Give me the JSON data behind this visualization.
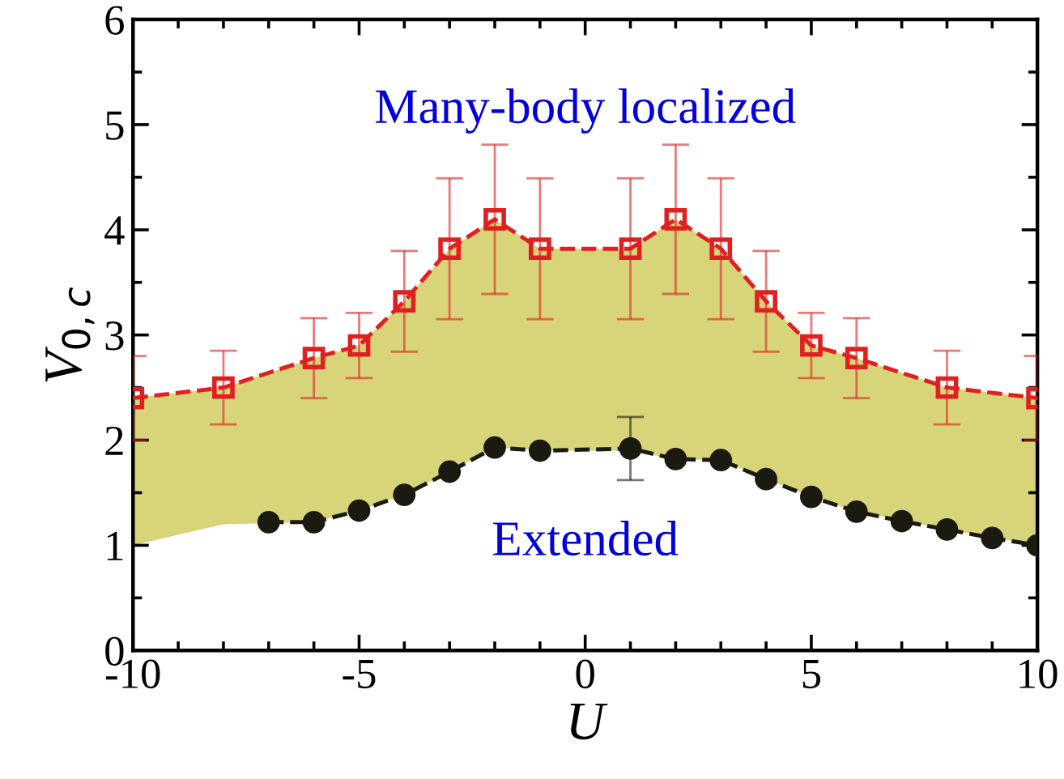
{
  "chart_data": {
    "type": "line",
    "xlabel": "U",
    "ylabel": "V$_{0,c}$",
    "annotations": [
      "Many-body localized",
      "Extended"
    ],
    "xlim": [
      -10,
      10
    ],
    "xticks": [
      -10,
      -5,
      0,
      5,
      10
    ],
    "ylim": [
      0,
      6
    ],
    "yticks": [
      0,
      1,
      2,
      3,
      4,
      5,
      6
    ],
    "grid": false,
    "legend": false,
    "series": [
      {
        "type": "line",
        "color": "#e02020",
        "marker": "square",
        "line_style": "dashed",
        "x": [
          -10,
          -8,
          -6,
          -5,
          -4,
          -3,
          -2,
          -1,
          1,
          2,
          3,
          4,
          5,
          6,
          8,
          10
        ],
        "values": [
          2.4,
          2.5,
          2.78,
          2.9,
          3.32,
          3.82,
          4.1,
          3.82,
          3.82,
          4.1,
          3.82,
          3.32,
          2.9,
          2.78,
          2.5,
          2.4
        ],
        "errors": [
          0.4,
          0.35,
          0.38,
          0.31,
          0.48,
          0.67,
          0.71,
          0.67,
          0.67,
          0.71,
          0.67,
          0.48,
          0.31,
          0.38,
          0.35,
          0.4
        ],
        "lower": [
          1.0,
          1.2,
          1.22,
          1.33,
          1.48,
          1.7,
          1.93,
          1.9,
          1.9,
          1.82,
          1.81,
          1.63,
          1.46,
          1.32,
          1.15,
          1.0
        ],
        "upper": [
          2.4,
          2.5,
          2.78,
          2.9,
          3.32,
          3.82,
          4.1,
          3.82,
          3.82,
          4.1,
          3.82,
          3.32,
          2.9,
          2.78,
          2.5,
          2.4
        ]
      },
      {
        "type": "line",
        "color": "#1a1a10",
        "marker": "circle",
        "line_style": "dashed",
        "x": [
          -7,
          -6,
          -5,
          -4,
          -3,
          -2,
          -1,
          1,
          2,
          3,
          4,
          5,
          6,
          7,
          8,
          9,
          10
        ],
        "values": [
          1.22,
          1.22,
          1.33,
          1.48,
          1.7,
          1.93,
          1.9,
          1.92,
          1.82,
          1.81,
          1.63,
          1.46,
          1.32,
          1.23,
          1.15,
          1.07,
          1.0
        ],
        "errors": [
          null,
          null,
          null,
          null,
          null,
          null,
          null,
          0.3,
          null,
          null,
          null,
          null,
          null,
          null,
          null,
          null,
          null
        ]
      }
    ]
  }
}
